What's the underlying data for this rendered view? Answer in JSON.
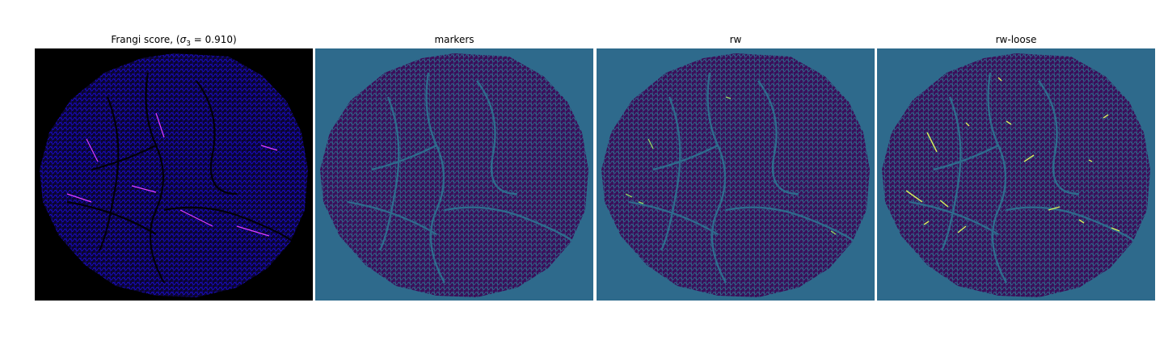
{
  "figure": {
    "panels": [
      {
        "title_prefix": "Frangi score, (",
        "sigma_symbol": "σ",
        "sigma_subscript": "3",
        "title_suffix": " = 0.910)",
        "background": "#000000",
        "vessel_color": "#1a0bd6",
        "highlight_color": "#e040ff"
      },
      {
        "title": "markers",
        "background": "#2e6a8c",
        "vessel_color": "#3b0f5a"
      },
      {
        "title": "rw",
        "background": "#2e6a8c",
        "vessel_color": "#3b0f5a",
        "highlight_color": "#9be15d"
      },
      {
        "title": "rw-loose",
        "background": "#2e6a8c",
        "vessel_color": "#3b0f5a",
        "highlight_color": "#d8f05a"
      }
    ]
  }
}
